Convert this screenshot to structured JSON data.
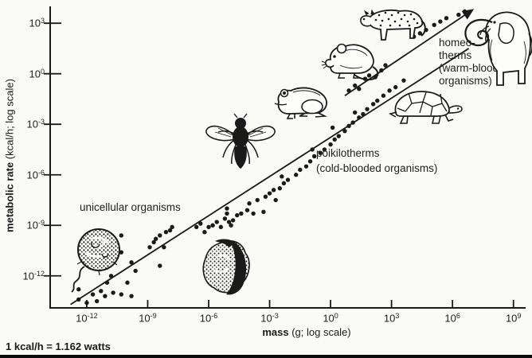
{
  "figure": {
    "note": "1 kcal/h = 1.162 watts",
    "ink_color": "#1a1a1a",
    "background_color": "#fafaf7"
  },
  "chart_data": {
    "type": "scatter",
    "title": "",
    "xlabel_bold": "mass",
    "xlabel_rest": " (g; log scale)",
    "ylabel_bold": "metabolic rate",
    "ylabel_rest": " (kcal/h; log scale)",
    "x_tick_base": "10",
    "x_tick_exponents": [
      -12,
      -9,
      -6,
      -3,
      0,
      3,
      6,
      9
    ],
    "y_tick_exponents": [
      3,
      0,
      -3,
      -6,
      -9,
      -12
    ],
    "xlim": [
      -13.8,
      9.6
    ],
    "ylim": [
      -13.9,
      4.0
    ],
    "grid": false,
    "legend": "none (in-plot annotations)",
    "annotations": {
      "unicellular": {
        "text": "unicellular organisms"
      },
      "poikilotherms": {
        "line1": "poikilotherms",
        "line2": "(cold-blooded organisms)"
      },
      "homeotherms": {
        "line1": "homeo-",
        "line2": "therms",
        "line3": "(warm-blooded",
        "line4": "organisms)"
      }
    },
    "series": [
      {
        "name": "poikilotherms and unicellular organisms",
        "marker": "dot",
        "trend": {
          "x": [
            -12.8,
            6.8
          ],
          "y": [
            -13.7,
            1.5
          ],
          "arrow": false
        },
        "points": [
          [
            -12.4,
            -13.4
          ],
          [
            -12.0,
            -13.6
          ],
          [
            -11.7,
            -13.1
          ],
          [
            -11.5,
            -13.5
          ],
          [
            -11.3,
            -12.9
          ],
          [
            -11.1,
            -13.2
          ],
          [
            -11.0,
            -12.4
          ],
          [
            -10.8,
            -12.0
          ],
          [
            -10.7,
            -13.0
          ],
          [
            -10.3,
            -13.1
          ],
          [
            -10.0,
            -12.4
          ],
          [
            -9.8,
            -13.2
          ],
          [
            -9.6,
            -11.7
          ],
          [
            -10.3,
            -10.6
          ],
          [
            -9.8,
            -11.2
          ],
          [
            -12.4,
            -12.8
          ],
          [
            -8.4,
            -11.4
          ],
          [
            -10.3,
            -9.6
          ],
          [
            -8.9,
            -10.3
          ],
          [
            -8.7,
            -10.0
          ],
          [
            -8.6,
            -9.8
          ],
          [
            -8.4,
            -9.6
          ],
          [
            -8.1,
            -9.4
          ],
          [
            -7.9,
            -9.3
          ],
          [
            -7.8,
            -9.1
          ],
          [
            -8.2,
            -10.3
          ],
          [
            -6.6,
            -9.1
          ],
          [
            -6.4,
            -8.9
          ],
          [
            -6.2,
            -9.4
          ],
          [
            -6.0,
            -9.1
          ],
          [
            -5.8,
            -9.0
          ],
          [
            -5.6,
            -8.8
          ],
          [
            -5.4,
            -9.1
          ],
          [
            -5.2,
            -8.6
          ],
          [
            -5.1,
            -8.0
          ],
          [
            -5.1,
            -8.3
          ],
          [
            -5.0,
            -8.8
          ],
          [
            -4.9,
            -9.0
          ],
          [
            -4.8,
            -8.7
          ],
          [
            -4.6,
            -8.4
          ],
          [
            -4.4,
            -8.3
          ],
          [
            -4.1,
            -8.1
          ],
          [
            -4.0,
            -7.7
          ],
          [
            -3.8,
            -8.3
          ],
          [
            -3.6,
            -7.5
          ],
          [
            -3.3,
            -8.2
          ],
          [
            -2.7,
            -7.5
          ],
          [
            -3.2,
            -7.3
          ],
          [
            -3.0,
            -7.1
          ],
          [
            -2.8,
            -6.9
          ],
          [
            -2.5,
            -6.8
          ],
          [
            -2.3,
            -6.5
          ],
          [
            -2.1,
            -6.3
          ],
          [
            -2.4,
            -6.1
          ],
          [
            -1.7,
            -6.0
          ],
          [
            -1.5,
            -5.7
          ],
          [
            -1.2,
            -5.5
          ],
          [
            -1.0,
            -5.2
          ],
          [
            -0.8,
            -4.9
          ],
          [
            -0.9,
            -4.5
          ],
          [
            -0.5,
            -4.7
          ],
          [
            -0.3,
            -4.5
          ],
          [
            0.0,
            -4.2
          ],
          [
            0.2,
            -3.9
          ],
          [
            0.4,
            -3.7
          ],
          [
            0.1,
            -3.2
          ],
          [
            0.7,
            -3.4
          ],
          [
            0.9,
            -3.1
          ],
          [
            1.1,
            -2.9
          ],
          [
            1.4,
            -2.6
          ],
          [
            1.2,
            -2.3
          ],
          [
            1.6,
            -2.4
          ],
          [
            1.8,
            -2.1
          ],
          [
            2.1,
            -1.8
          ],
          [
            2.3,
            -1.6
          ],
          [
            2.6,
            -1.3
          ],
          [
            2.9,
            -1.0
          ],
          [
            3.2,
            -0.8
          ],
          [
            3.6,
            -0.4
          ]
        ]
      },
      {
        "name": "homeotherms",
        "marker": "dot",
        "trend": {
          "x": [
            0.7,
            7.0
          ],
          "y": [
            -1.3,
            3.8
          ],
          "arrow": true
        },
        "points": [
          [
            0.9,
            -1.0
          ],
          [
            1.2,
            -0.7
          ],
          [
            1.4,
            -0.9
          ],
          [
            1.7,
            -0.3
          ],
          [
            1.9,
            -0.1
          ],
          [
            2.2,
            -0.2
          ],
          [
            2.5,
            0.2
          ],
          [
            2.7,
            0.5
          ],
          [
            4.1,
            2.2
          ],
          [
            4.4,
            2.4
          ],
          [
            4.7,
            2.6
          ],
          [
            5.1,
            2.9
          ],
          [
            5.4,
            3.1
          ],
          [
            5.7,
            3.3
          ],
          [
            6.3,
            3.5
          ],
          [
            6.6,
            3.7
          ]
        ]
      }
    ],
    "illustrations": [
      "flagellate-protozoan",
      "amoeba",
      "fly",
      "frog",
      "rat",
      "turtle",
      "leopard",
      "elephant"
    ]
  }
}
